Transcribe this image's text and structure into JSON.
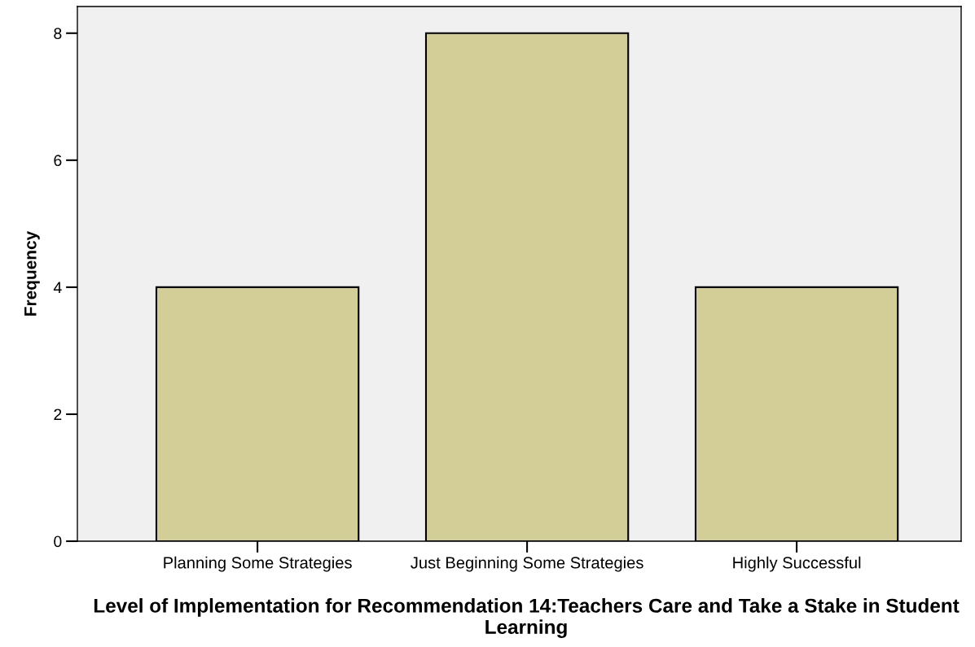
{
  "chart_data": {
    "type": "bar",
    "categories": [
      "Planning Some Strategies",
      "Just Beginning Some Strategies",
      "Highly Successful"
    ],
    "values": [
      4,
      8,
      4
    ],
    "color": "#d3cd98",
    "xlabel": "Level of Implementation for Recommendation 14:Teachers Care and Take a Stake in Student Learning",
    "ylabel": "Frequency",
    "ylim": [
      0,
      8.42
    ],
    "yticks": [
      0,
      2,
      4,
      6,
      8
    ],
    "grid": false
  }
}
